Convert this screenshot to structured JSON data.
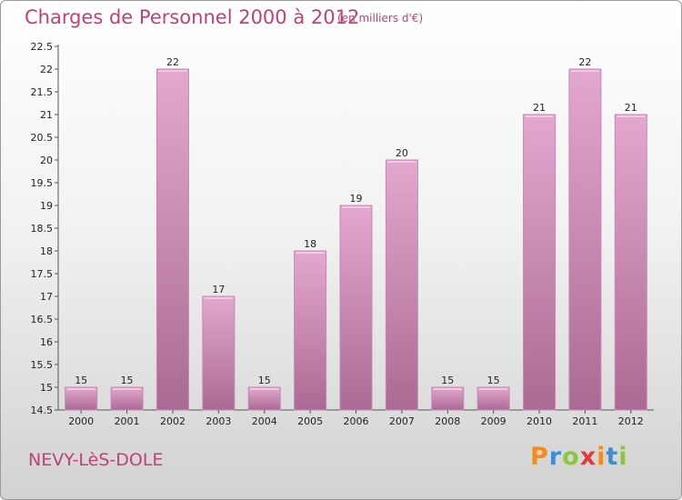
{
  "header": {
    "title": "Charges de Personnel 2000 à 2012",
    "subtitle": "(en milliers d'€)"
  },
  "footer": {
    "commune": "NEVY-LèS-DOLE",
    "logo_letters": [
      "P",
      "r",
      "o",
      "x",
      "i",
      "t",
      "i"
    ]
  },
  "colors": {
    "bar_top": "#e4a7cf",
    "bar_bottom": "#ab6a94",
    "title": "#c0407a"
  },
  "chart_data": {
    "type": "bar",
    "title": "Charges de Personnel 2000 à 2012",
    "subtitle": "(en milliers d'€)",
    "categories": [
      "2000",
      "2001",
      "2002",
      "2003",
      "2004",
      "2005",
      "2006",
      "2007",
      "2008",
      "2009",
      "2010",
      "2011",
      "2012"
    ],
    "values": [
      15,
      15,
      22,
      17,
      15,
      18,
      19,
      20,
      15,
      15,
      21,
      22,
      21
    ],
    "value_labels": [
      "15",
      "15",
      "22",
      "17",
      "15",
      "18",
      "19",
      "20",
      "15",
      "15",
      "21",
      "22",
      "21"
    ],
    "yticks": [
      "14.5",
      "15",
      "15.5",
      "16",
      "16.5",
      "17",
      "17.5",
      "18",
      "18.5",
      "19",
      "19.5",
      "20",
      "20.5",
      "21",
      "21.5",
      "22",
      "22.5"
    ],
    "ylim": [
      14.5,
      22.5
    ],
    "grid": false,
    "legend": "none"
  }
}
